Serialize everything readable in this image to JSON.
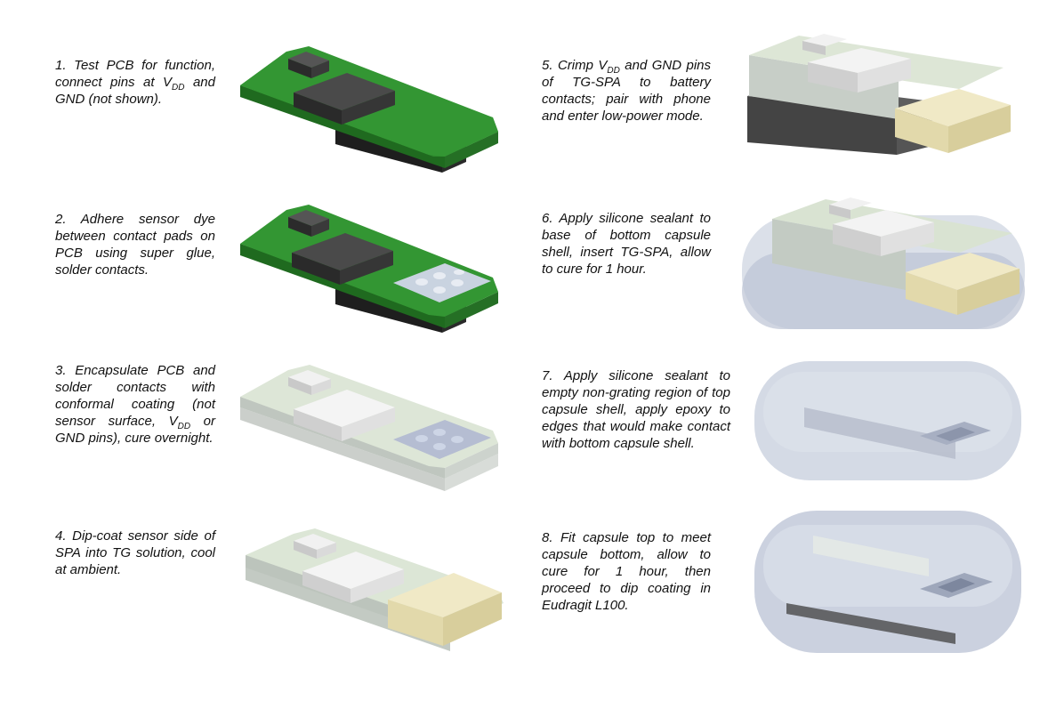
{
  "steps": [
    {
      "num": "1.",
      "pre": "Test PCB for function, connect pins at V",
      "sub1": "DD",
      "post": " and GND (not shown)."
    },
    {
      "num": "2.",
      "text": "Adhere sensor dye between contact pads on PCB using super glue, solder contacts."
    },
    {
      "num": "3.",
      "pre": "Encapsulate PCB and solder contacts with conformal coating (not sensor surface, V",
      "sub1": "DD",
      "post": " or GND pins), cure overnight."
    },
    {
      "num": "4.",
      "text": "Dip-coat sensor side of SPA into TG solution, cool at ambient."
    },
    {
      "num": "5.",
      "pre": "Crimp V",
      "sub1": "DD",
      "post": " and GND pins of TG-SPA to battery contacts; pair with phone and enter low-power mode."
    },
    {
      "num": "6.",
      "text": "Apply silicone sealant to base of bottom capsule shell, insert TG-SPA, allow to cure for 1 hour."
    },
    {
      "num": "7.",
      "text": "Apply silicone sealant to empty non-grating region of top capsule shell, apply epoxy to edges that would make contact with bottom capsule shell."
    },
    {
      "num": "8.",
      "text": "Fit capsule top to meet capsule bottom, allow to cure for 1 hour, then proceed to dip coating in Eudragit L100."
    }
  ],
  "colors": {
    "pcb_top": "#2e8b2e",
    "pcb_side": "#1f6a1f",
    "chip": "#3a3a3a",
    "coating_top": "#d6e2d0",
    "coating_side": "#c8cec8",
    "tg_top": "#efe8c4",
    "tg_side": "#ddd3a0",
    "capsule": "#c9cfdc",
    "battery": "#4a4a4a"
  },
  "icons": [
    "pcb-icon",
    "sensor-pcb-icon",
    "coated-pcb-icon",
    "tg-coated-icon",
    "battery-assembly-icon",
    "bottom-shell-icon",
    "top-shell-icon",
    "capsule-assembled-icon"
  ]
}
